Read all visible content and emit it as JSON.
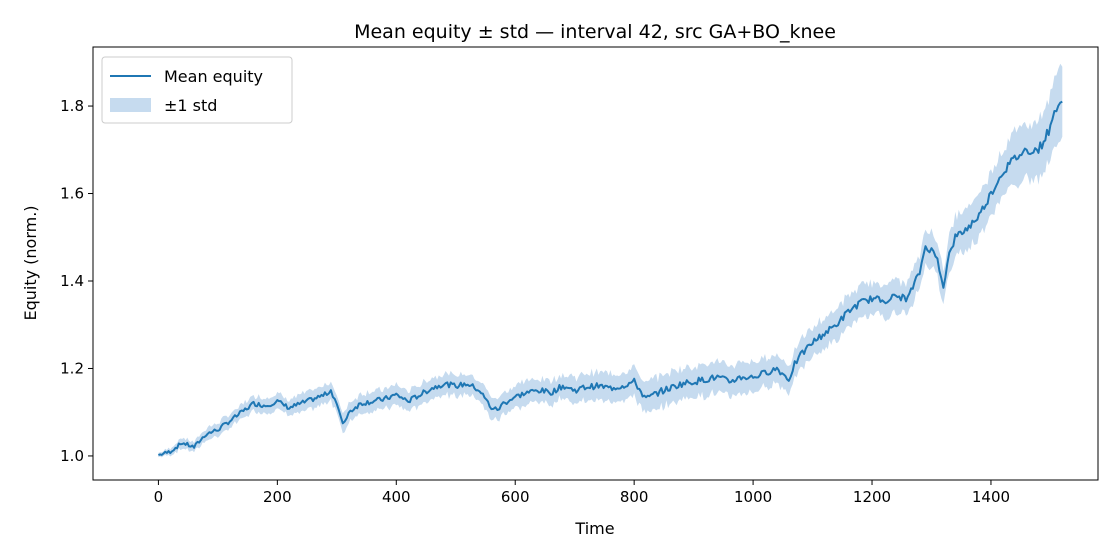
{
  "chart_data": {
    "type": "line",
    "title": "Mean equity ± std — interval 42, src GA+BO_knee",
    "xlabel": "Time",
    "ylabel": "Equity (norm.)",
    "xlim": [
      -110,
      1580
    ],
    "ylim": [
      0.945,
      1.935
    ],
    "x_ticks": [
      0,
      200,
      400,
      600,
      800,
      1000,
      1200,
      1400
    ],
    "y_ticks": [
      1.0,
      1.2,
      1.4,
      1.6,
      1.8
    ],
    "y_tick_labels": [
      "1.0",
      "1.2",
      "1.4",
      "1.6",
      "1.8"
    ],
    "grid": false,
    "legend": {
      "position": "top-left",
      "entries": [
        "Mean equity",
        "±1 std"
      ]
    },
    "colors": {
      "line": "#1f77b4",
      "band": "#c6dbef"
    },
    "series": [
      {
        "name": "Mean equity",
        "x": [
          0,
          20,
          40,
          60,
          80,
          100,
          120,
          140,
          160,
          180,
          200,
          220,
          240,
          260,
          280,
          290,
          300,
          310,
          320,
          340,
          360,
          380,
          400,
          420,
          440,
          460,
          480,
          500,
          520,
          540,
          560,
          570,
          580,
          600,
          620,
          640,
          660,
          680,
          700,
          720,
          740,
          760,
          780,
          800,
          820,
          840,
          860,
          880,
          900,
          920,
          940,
          960,
          980,
          1000,
          1020,
          1040,
          1060,
          1070,
          1080,
          1100,
          1120,
          1140,
          1160,
          1180,
          1200,
          1220,
          1240,
          1260,
          1280,
          1290,
          1300,
          1310,
          1320,
          1330,
          1340,
          1360,
          1380,
          1400,
          1420,
          1440,
          1460,
          1480,
          1500,
          1510,
          1520
        ],
        "y": [
          1.002,
          1.01,
          1.03,
          1.02,
          1.05,
          1.06,
          1.08,
          1.1,
          1.12,
          1.115,
          1.125,
          1.11,
          1.12,
          1.13,
          1.14,
          1.15,
          1.12,
          1.07,
          1.1,
          1.12,
          1.125,
          1.13,
          1.14,
          1.125,
          1.14,
          1.155,
          1.165,
          1.16,
          1.165,
          1.15,
          1.11,
          1.105,
          1.12,
          1.135,
          1.145,
          1.15,
          1.145,
          1.16,
          1.15,
          1.158,
          1.16,
          1.155,
          1.16,
          1.17,
          1.13,
          1.145,
          1.155,
          1.165,
          1.17,
          1.175,
          1.18,
          1.17,
          1.18,
          1.18,
          1.19,
          1.2,
          1.175,
          1.21,
          1.23,
          1.26,
          1.28,
          1.3,
          1.33,
          1.35,
          1.36,
          1.355,
          1.365,
          1.36,
          1.42,
          1.48,
          1.47,
          1.45,
          1.39,
          1.46,
          1.5,
          1.52,
          1.55,
          1.6,
          1.65,
          1.68,
          1.7,
          1.7,
          1.75,
          1.8,
          1.81
        ],
        "std": [
          0.005,
          0.008,
          0.012,
          0.012,
          0.014,
          0.015,
          0.016,
          0.017,
          0.018,
          0.018,
          0.019,
          0.019,
          0.02,
          0.02,
          0.021,
          0.021,
          0.022,
          0.022,
          0.022,
          0.022,
          0.023,
          0.023,
          0.023,
          0.023,
          0.024,
          0.024,
          0.024,
          0.024,
          0.025,
          0.025,
          0.025,
          0.025,
          0.026,
          0.026,
          0.027,
          0.027,
          0.028,
          0.028,
          0.029,
          0.03,
          0.031,
          0.032,
          0.033,
          0.034,
          0.035,
          0.036,
          0.036,
          0.036,
          0.036,
          0.036,
          0.036,
          0.035,
          0.034,
          0.033,
          0.033,
          0.033,
          0.033,
          0.033,
          0.033,
          0.034,
          0.035,
          0.036,
          0.037,
          0.037,
          0.037,
          0.037,
          0.037,
          0.037,
          0.038,
          0.04,
          0.04,
          0.04,
          0.04,
          0.042,
          0.044,
          0.046,
          0.048,
          0.05,
          0.054,
          0.058,
          0.062,
          0.066,
          0.07,
          0.075,
          0.08
        ]
      }
    ]
  }
}
